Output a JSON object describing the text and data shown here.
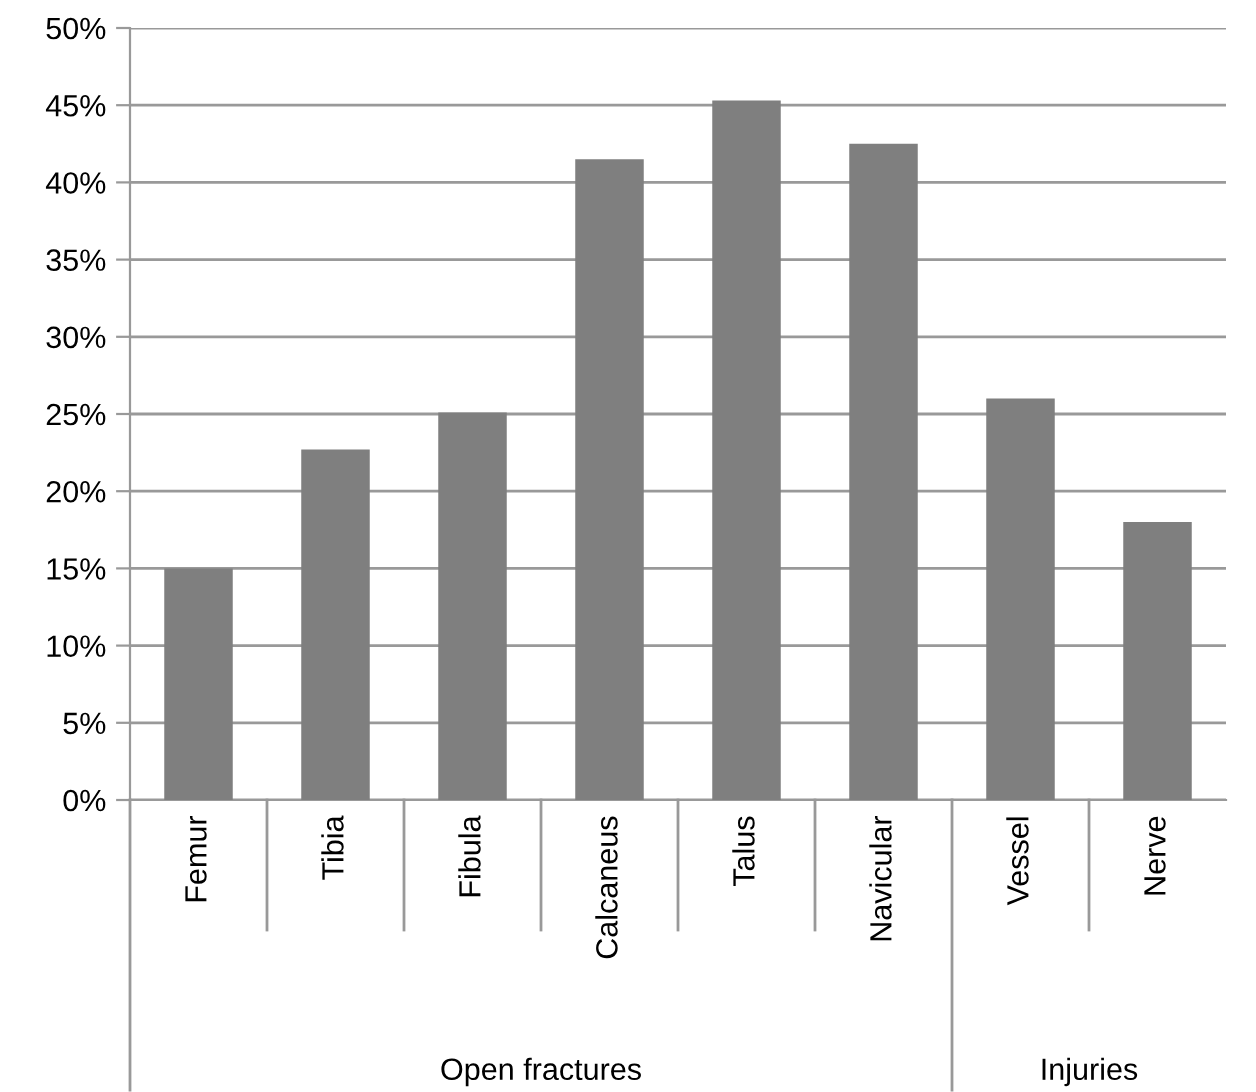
{
  "chart_data": {
    "type": "bar",
    "categories": [
      "Femur",
      "Tibia",
      "Fibula",
      "Calcaneus",
      "Talus",
      "Navicular",
      "Vessel",
      "Nerve"
    ],
    "values": [
      15.0,
      22.7,
      25.1,
      41.5,
      45.3,
      42.5,
      26.0,
      18.0
    ],
    "color": "#7f7f7f",
    "ylim": [
      0,
      50
    ],
    "yticks": [
      {
        "value": 0,
        "label": "0%"
      },
      {
        "value": 5,
        "label": "5%"
      },
      {
        "value": 10,
        "label": "10%"
      },
      {
        "value": 15,
        "label": "15%"
      },
      {
        "value": 20,
        "label": "20%"
      },
      {
        "value": 25,
        "label": "25%"
      },
      {
        "value": 30,
        "label": "30%"
      },
      {
        "value": 35,
        "label": "35%"
      },
      {
        "value": 40,
        "label": "40%"
      },
      {
        "value": 45,
        "label": "45%"
      },
      {
        "value": 50,
        "label": "50%"
      }
    ],
    "grid": "y",
    "annotations": [
      "Open fractures",
      "Injuries"
    ]
  }
}
